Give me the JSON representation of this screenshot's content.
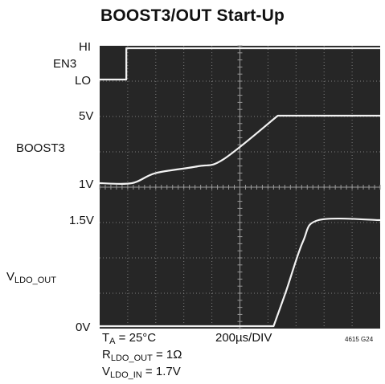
{
  "title": "BOOST3/OUT Start-Up",
  "channel_labels": {
    "en3": "EN3",
    "boost3": "BOOST3",
    "vldo_main": "V",
    "vldo_sub": "LDO_OUT"
  },
  "level_labels": {
    "hi": "HI",
    "lo": "LO",
    "v5": "5V",
    "v1": "1V",
    "v15": "1.5V",
    "v0": "0V"
  },
  "conditions": {
    "ta_main": "T",
    "ta_sub": "A",
    "ta_val": " = 25°C",
    "timebase": "200µs/DIV",
    "r_main": "R",
    "r_sub": "LDO_OUT",
    "r_val": " = 1Ω",
    "v_main": "V",
    "v_sub": "LDO_IN",
    "v_val": " = 1.7V"
  },
  "figure_id": "4615 G24",
  "chart_data": {
    "type": "line",
    "title": "BOOST3/OUT Start-Up",
    "x_unit": "µs",
    "x_divisions": 10,
    "time_per_div_us": 200,
    "xlim": [
      0,
      2000
    ],
    "grid": true,
    "series": [
      {
        "name": "EN3",
        "unit": "logic",
        "levels": [
          "LO",
          "HI"
        ],
        "points": [
          [
            0,
            "LO"
          ],
          [
            190,
            "LO"
          ],
          [
            190,
            "HI"
          ],
          [
            2000,
            "HI"
          ]
        ]
      },
      {
        "name": "BOOST3",
        "unit": "V",
        "points": [
          [
            0,
            1.0
          ],
          [
            230,
            1.0
          ],
          [
            400,
            1.6
          ],
          [
            700,
            2.0
          ],
          [
            880,
            2.4
          ],
          [
            1270,
            5.0
          ],
          [
            2000,
            5.0
          ]
        ]
      },
      {
        "name": "VLDO_OUT",
        "unit": "V",
        "points": [
          [
            0,
            0.0
          ],
          [
            1240,
            0.0
          ],
          [
            1330,
            0.5
          ],
          [
            1450,
            1.2
          ],
          [
            1560,
            1.5
          ],
          [
            2000,
            1.5
          ]
        ]
      }
    ]
  }
}
